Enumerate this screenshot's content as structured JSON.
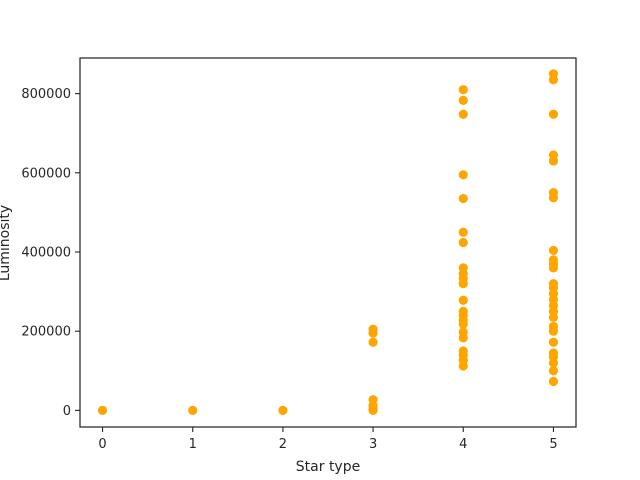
{
  "chart_data": {
    "type": "scatter",
    "title": "",
    "xlabel": "Star type",
    "ylabel": "Luminosity",
    "xlim": [
      -0.25,
      5.25
    ],
    "ylim": [
      -42000,
      890000
    ],
    "xticks": [
      0,
      1,
      2,
      3,
      4,
      5
    ],
    "yticks": [
      0,
      200000,
      400000,
      600000,
      800000
    ],
    "grid": false,
    "legend": "none",
    "marker_color": "#ffa500",
    "series": [
      {
        "points": [
          {
            "x": 0,
            "y": 0
          },
          {
            "x": 1,
            "y": 0
          },
          {
            "x": 2,
            "y": 0
          },
          {
            "x": 3,
            "y": 205000
          },
          {
            "x": 3,
            "y": 195000
          },
          {
            "x": 3,
            "y": 172000
          },
          {
            "x": 3,
            "y": 27000
          },
          {
            "x": 3,
            "y": 12000
          },
          {
            "x": 3,
            "y": 3000
          },
          {
            "x": 3,
            "y": 0
          },
          {
            "x": 4,
            "y": 810000
          },
          {
            "x": 4,
            "y": 783000
          },
          {
            "x": 4,
            "y": 748000
          },
          {
            "x": 4,
            "y": 595000
          },
          {
            "x": 4,
            "y": 535000
          },
          {
            "x": 4,
            "y": 450000
          },
          {
            "x": 4,
            "y": 424000
          },
          {
            "x": 4,
            "y": 360000
          },
          {
            "x": 4,
            "y": 345000
          },
          {
            "x": 4,
            "y": 333000
          },
          {
            "x": 4,
            "y": 320000
          },
          {
            "x": 4,
            "y": 278000
          },
          {
            "x": 4,
            "y": 250000
          },
          {
            "x": 4,
            "y": 240000
          },
          {
            "x": 4,
            "y": 228000
          },
          {
            "x": 4,
            "y": 218000
          },
          {
            "x": 4,
            "y": 198000
          },
          {
            "x": 4,
            "y": 183000
          },
          {
            "x": 4,
            "y": 150000
          },
          {
            "x": 4,
            "y": 140000
          },
          {
            "x": 4,
            "y": 127000
          },
          {
            "x": 4,
            "y": 112000
          },
          {
            "x": 5,
            "y": 850000
          },
          {
            "x": 5,
            "y": 835000
          },
          {
            "x": 5,
            "y": 748000
          },
          {
            "x": 5,
            "y": 645000
          },
          {
            "x": 5,
            "y": 630000
          },
          {
            "x": 5,
            "y": 550000
          },
          {
            "x": 5,
            "y": 537000
          },
          {
            "x": 5,
            "y": 404000
          },
          {
            "x": 5,
            "y": 380000
          },
          {
            "x": 5,
            "y": 370000
          },
          {
            "x": 5,
            "y": 360000
          },
          {
            "x": 5,
            "y": 320000
          },
          {
            "x": 5,
            "y": 310000
          },
          {
            "x": 5,
            "y": 295000
          },
          {
            "x": 5,
            "y": 280000
          },
          {
            "x": 5,
            "y": 265000
          },
          {
            "x": 5,
            "y": 250000
          },
          {
            "x": 5,
            "y": 235000
          },
          {
            "x": 5,
            "y": 212000
          },
          {
            "x": 5,
            "y": 200000
          },
          {
            "x": 5,
            "y": 172000
          },
          {
            "x": 5,
            "y": 145000
          },
          {
            "x": 5,
            "y": 135000
          },
          {
            "x": 5,
            "y": 120000
          },
          {
            "x": 5,
            "y": 100000
          },
          {
            "x": 5,
            "y": 73000
          }
        ]
      }
    ]
  }
}
